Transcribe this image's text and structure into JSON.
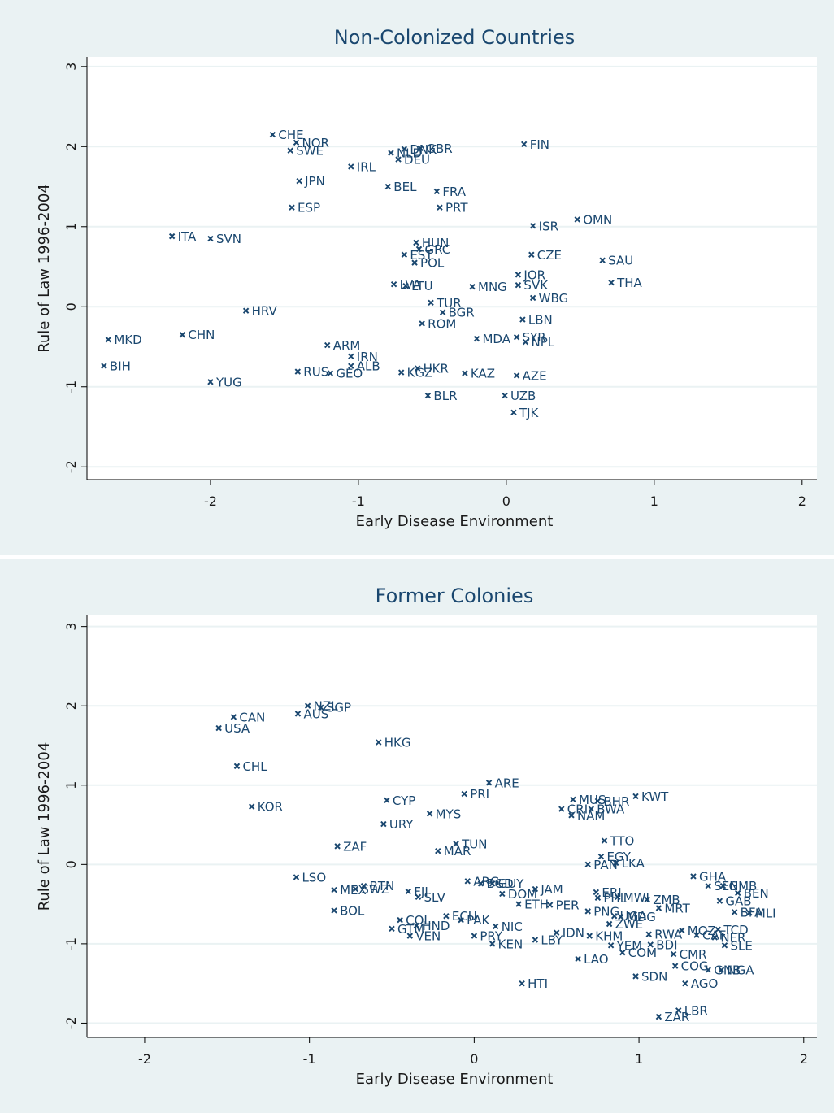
{
  "chart_data": [
    {
      "type": "scatter",
      "title": "Non-Colonized Countries",
      "xlabel": "Early Disease Environment",
      "ylabel": "Rule of Law 1996-2004",
      "color": "#1a476f",
      "xlim": [
        -2.835,
        2.1
      ],
      "ylim": [
        -2.16,
        3.12
      ],
      "xticks": [
        -2,
        -1,
        0,
        1,
        2
      ],
      "yticks": [
        -2,
        -1,
        0,
        1,
        2,
        3
      ],
      "grid": true,
      "labels": [
        "CHE",
        "NOR",
        "SWE",
        "JPN",
        "ESP",
        "IRL",
        "BEL",
        "NLD",
        "DNK",
        "DEU",
        "GBR",
        "FRA",
        "PRT",
        "FIN",
        "ISR",
        "OMN",
        "ITA",
        "SVN",
        "HUN",
        "GRC",
        "EST",
        "POL",
        "CZE",
        "SAU",
        "JOR",
        "SVK",
        "THA",
        "LVA",
        "LTU",
        "MNG",
        "WBG",
        "TUR",
        "HRV",
        "BGR",
        "LBN",
        "ROM",
        "MKD",
        "CHN",
        "MDA",
        "SYR",
        "NPL",
        "ARM",
        "IRN",
        "ALB",
        "BIH",
        "UKR",
        "RUS",
        "GEO",
        "KGZ",
        "KAZ",
        "AZE",
        "YUG",
        "BLR",
        "UZB",
        "TJK"
      ],
      "x": [
        -1.58,
        -1.42,
        -1.46,
        -1.4,
        -1.45,
        -1.05,
        -0.8,
        -0.78,
        -0.69,
        -0.73,
        -0.58,
        -0.47,
        -0.45,
        0.12,
        0.18,
        0.48,
        -2.26,
        -2.0,
        -0.61,
        -0.59,
        -0.69,
        -0.62,
        0.17,
        0.65,
        0.08,
        0.08,
        0.71,
        -0.76,
        -0.68,
        -0.23,
        0.18,
        -0.51,
        -1.76,
        -0.43,
        0.11,
        -0.57,
        -2.69,
        -2.19,
        -0.2,
        0.07,
        0.13,
        -1.21,
        -1.05,
        -1.05,
        -2.72,
        -0.6,
        -1.41,
        -1.19,
        -0.71,
        -0.28,
        0.07,
        -2.0,
        -0.53,
        -0.01,
        0.05
      ],
      "values": [
        2.15,
        2.05,
        1.95,
        1.57,
        1.24,
        1.75,
        1.5,
        1.92,
        1.97,
        1.84,
        1.98,
        1.44,
        1.24,
        2.03,
        1.01,
        1.09,
        0.88,
        0.85,
        0.8,
        0.72,
        0.65,
        0.55,
        0.65,
        0.58,
        0.4,
        0.27,
        0.3,
        0.28,
        0.26,
        0.25,
        0.11,
        0.05,
        -0.05,
        -0.07,
        -0.16,
        -0.21,
        -0.41,
        -0.35,
        -0.4,
        -0.38,
        -0.44,
        -0.48,
        -0.62,
        -0.74,
        -0.74,
        -0.77,
        -0.81,
        -0.83,
        -0.82,
        -0.83,
        -0.86,
        -0.94,
        -1.11,
        -1.11,
        -1.32
      ]
    },
    {
      "type": "scatter",
      "title": "Former Colonies",
      "xlabel": "Early Disease Environment",
      "ylabel": "Rule of Law  1996-2004",
      "color": "#1a476f",
      "xlim": [
        -2.35,
        2.08
      ],
      "ylim": [
        -2.18,
        3.14
      ],
      "xticks": [
        -2,
        -1,
        0,
        1,
        2
      ],
      "yticks": [
        -2,
        -1,
        0,
        1,
        2,
        3
      ],
      "grid": true,
      "labels": [
        "NZL",
        "SGP",
        "CAN",
        "AUS",
        "USA",
        "HKG",
        "CHL",
        "ARE",
        "PRI",
        "KWT",
        "MUS",
        "BHR",
        "KOR",
        "CYP",
        "CRI",
        "BWA",
        "NAM",
        "MYS",
        "URY",
        "TTO",
        "TUN",
        "ZAF",
        "MAR",
        "EGY",
        "PAN",
        "LKA",
        "GHA",
        "LSO",
        "SEN",
        "GMB",
        "BEN",
        "GAB",
        "ARG",
        "BGD",
        "GUY",
        "JAM",
        "BTN",
        "MEX",
        "SWZ",
        "FJI",
        "SLV",
        "BOL",
        "DOM",
        "ETH",
        "PER",
        "ERI",
        "PHL",
        "MWI",
        "ZMB",
        "MRT",
        "PNG",
        "UGA",
        "MDG",
        "ZWE",
        "BFA",
        "MLI",
        "TCD",
        "COL",
        "ECU",
        "PAK",
        "VEN",
        "GTM",
        "HND",
        "NIC",
        "PRY",
        "KEN",
        "LBY",
        "IDN",
        "KHM",
        "RWA",
        "MOZ",
        "CAF",
        "NER",
        "SLE",
        "YEM",
        "COM",
        "BDI",
        "CMR",
        "LAO",
        "COG",
        "SDN",
        "GNB",
        "NGA",
        "AGO",
        "HTI",
        "LBR",
        "ZAR"
      ],
      "x": [
        -1.01,
        -0.93,
        -1.46,
        -1.07,
        -1.55,
        -0.58,
        -1.44,
        0.09,
        -0.06,
        0.98,
        0.6,
        0.75,
        -1.35,
        -0.53,
        0.53,
        0.71,
        0.59,
        -0.27,
        -0.55,
        0.79,
        -0.11,
        -0.83,
        -0.22,
        0.77,
        0.69,
        0.86,
        1.33,
        -1.08,
        1.42,
        1.51,
        1.6,
        1.49,
        -0.04,
        0.04,
        0.11,
        0.37,
        -0.67,
        -0.85,
        -0.72,
        -0.4,
        -0.34,
        -0.85,
        0.17,
        0.27,
        0.46,
        0.74,
        0.75,
        0.87,
        1.05,
        1.12,
        0.69,
        0.85,
        0.89,
        0.82,
        1.58,
        1.67,
        1.48,
        -0.45,
        -0.17,
        -0.08,
        -0.39,
        -0.5,
        -0.35,
        0.13,
        0.0,
        0.11,
        0.37,
        0.5,
        0.7,
        1.06,
        1.26,
        1.35,
        1.46,
        1.52,
        0.83,
        0.9,
        1.07,
        1.21,
        0.63,
        1.22,
        0.98,
        1.42,
        1.5,
        1.28,
        0.29,
        1.24,
        1.12
      ],
      "values": [
        2.0,
        1.98,
        1.86,
        1.9,
        1.72,
        1.54,
        1.24,
        1.03,
        0.89,
        0.86,
        0.82,
        0.8,
        0.73,
        0.81,
        0.7,
        0.7,
        0.62,
        0.64,
        0.51,
        0.3,
        0.26,
        0.23,
        0.17,
        0.1,
        0.0,
        0.02,
        -0.15,
        -0.16,
        -0.27,
        -0.27,
        -0.36,
        -0.46,
        -0.21,
        -0.24,
        -0.24,
        -0.31,
        -0.27,
        -0.32,
        -0.31,
        -0.34,
        -0.41,
        -0.58,
        -0.37,
        -0.5,
        -0.51,
        -0.35,
        -0.42,
        -0.41,
        -0.44,
        -0.55,
        -0.59,
        -0.65,
        -0.66,
        -0.75,
        -0.6,
        -0.61,
        -0.82,
        -0.7,
        -0.65,
        -0.7,
        -0.9,
        -0.81,
        -0.77,
        -0.78,
        -0.9,
        -1.0,
        -0.95,
        -0.86,
        -0.9,
        -0.88,
        -0.83,
        -0.89,
        -0.92,
        -1.02,
        -1.02,
        -1.11,
        -1.01,
        -1.13,
        -1.19,
        -1.28,
        -1.41,
        -1.33,
        -1.33,
        -1.5,
        -1.5,
        -1.84,
        -1.92
      ]
    }
  ]
}
